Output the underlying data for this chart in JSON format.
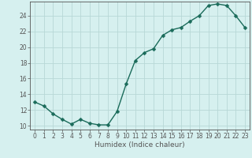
{
  "x": [
    0,
    1,
    2,
    3,
    4,
    5,
    6,
    7,
    8,
    9,
    10,
    11,
    12,
    13,
    14,
    15,
    16,
    17,
    18,
    19,
    20,
    21,
    22,
    23
  ],
  "y": [
    13.0,
    12.5,
    11.5,
    10.8,
    10.2,
    10.8,
    10.3,
    10.1,
    10.1,
    11.8,
    15.3,
    18.3,
    19.3,
    19.8,
    21.5,
    22.2,
    22.5,
    23.3,
    24.0,
    25.3,
    25.5,
    25.3,
    24.0,
    22.5
  ],
  "line_color": "#1a6b5a",
  "marker_color": "#1a6b5a",
  "bg_color": "#d6f0ef",
  "grid_color": "#b8d8d6",
  "axis_color": "#555555",
  "xlabel": "Humidex (Indice chaleur)",
  "xlim": [
    -0.5,
    23.5
  ],
  "ylim": [
    9.5,
    25.8
  ],
  "yticks": [
    10,
    12,
    14,
    16,
    18,
    20,
    22,
    24
  ],
  "xticks": [
    0,
    1,
    2,
    3,
    4,
    5,
    6,
    7,
    8,
    9,
    10,
    11,
    12,
    13,
    14,
    15,
    16,
    17,
    18,
    19,
    20,
    21,
    22,
    23
  ],
  "tick_fontsize": 5.5,
  "xlabel_fontsize": 6.5,
  "linewidth": 1.0,
  "markersize": 2.5
}
